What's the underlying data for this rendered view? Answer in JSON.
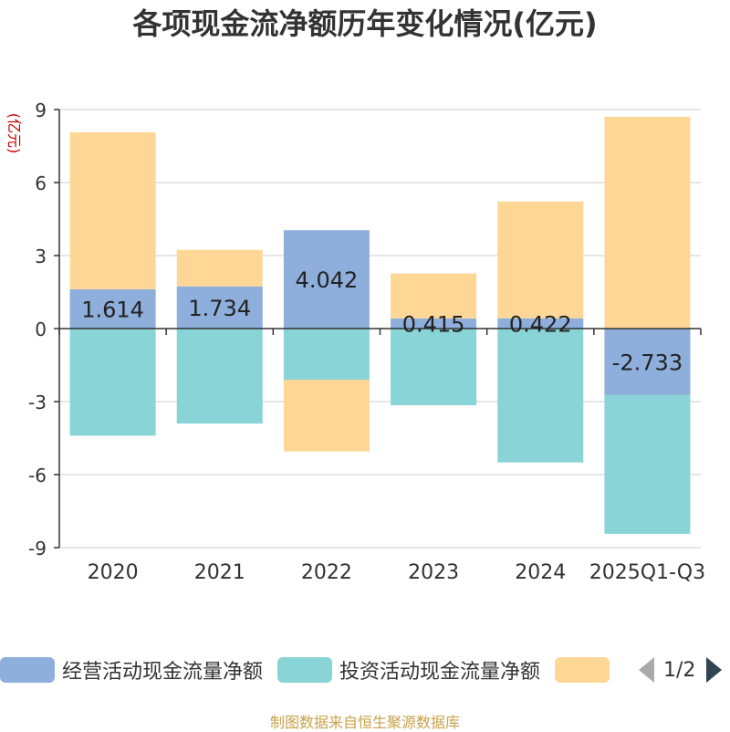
{
  "title": "各项现金流净额历年变化情况(亿元)",
  "source": "制图数据来自恒生聚源数据库",
  "chart_data": {
    "type": "bar",
    "stacked": true,
    "categories": [
      "2020",
      "2021",
      "2022",
      "2023",
      "2024",
      "2025Q1-Q3"
    ],
    "ylabel": "(亿元)",
    "ylim": [
      -9,
      9
    ],
    "yticks": [
      "9",
      "6",
      "3",
      "0",
      "-3",
      "-6",
      "-9"
    ],
    "grid": true,
    "legend_position": "bottom",
    "series": [
      {
        "name": "经营活动现金流量净额",
        "color": "#8eaedb",
        "values": [
          1.614,
          1.734,
          4.042,
          0.415,
          0.422,
          -2.733
        ],
        "labels": [
          "1.614",
          "1.734",
          "4.042",
          "0.415",
          "0.422",
          "-2.733"
        ]
      },
      {
        "name": "投资活动现金流量净额",
        "color": "#88d4d6",
        "values": [
          -4.4,
          -3.9,
          -2.1,
          -3.15,
          -5.5,
          -5.7
        ]
      },
      {
        "name": "",
        "color": "#fed797",
        "values": [
          6.45,
          1.5,
          -2.95,
          1.85,
          4.8,
          8.7
        ]
      }
    ]
  },
  "legend": {
    "page_label": "1/2"
  }
}
